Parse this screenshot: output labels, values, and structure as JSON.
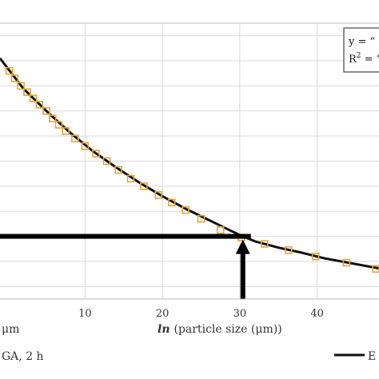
{
  "chart_data": {
    "type": "scatter",
    "xlim": [
      -1,
      48
    ],
    "ylim": [
      -0.5,
      10.5
    ],
    "x_ticks": [
      10,
      20,
      30,
      40
    ],
    "grid": true,
    "xlabel": {
      "left_fragment": "μm",
      "italic_part": "ln",
      "rest": "(particle size (μm))"
    },
    "series": [
      {
        "marker": "square-open",
        "color": "#e8a33a",
        "points": [
          [
            0.2,
            8.6
          ],
          [
            0.9,
            8.3
          ],
          [
            1.7,
            8.0
          ],
          [
            2.5,
            7.75
          ],
          [
            3.3,
            7.5
          ],
          [
            4.1,
            7.25
          ],
          [
            5.0,
            7.0
          ],
          [
            5.8,
            6.7
          ],
          [
            6.6,
            6.45
          ],
          [
            7.5,
            6.2
          ],
          [
            8.7,
            5.9
          ],
          [
            10.0,
            5.6
          ],
          [
            11.4,
            5.3
          ],
          [
            12.8,
            5.0
          ],
          [
            14.3,
            4.65
          ],
          [
            15.9,
            4.3
          ],
          [
            17.6,
            4.0
          ],
          [
            19.5,
            3.65
          ],
          [
            21.2,
            3.35
          ],
          [
            23.0,
            3.05
          ],
          [
            25.0,
            2.7
          ],
          [
            27.5,
            2.25
          ],
          [
            30.2,
            1.95
          ],
          [
            33.2,
            1.7
          ],
          [
            36.3,
            1.45
          ],
          [
            39.8,
            1.2
          ],
          [
            43.8,
            0.95
          ],
          [
            47.6,
            0.7
          ]
        ]
      }
    ],
    "fit_line": {
      "color": "#111111",
      "points": [
        [
          -1.0,
          9.1
        ],
        [
          2.0,
          7.9
        ],
        [
          5.0,
          7.0
        ],
        [
          8.0,
          6.15
        ],
        [
          11.0,
          5.4
        ],
        [
          14.0,
          4.75
        ],
        [
          17.0,
          4.15
        ],
        [
          20.0,
          3.6
        ],
        [
          23.0,
          3.1
        ],
        [
          26.0,
          2.65
        ],
        [
          29.0,
          2.2
        ],
        [
          30.4,
          2.0
        ],
        [
          32.0,
          1.8
        ],
        [
          35.0,
          1.55
        ],
        [
          38.0,
          1.35
        ],
        [
          41.0,
          1.12
        ],
        [
          44.0,
          0.95
        ],
        [
          48.0,
          0.72
        ]
      ]
    },
    "marker_point": [
      30.4,
      2.0
    ],
    "equation_box": {
      "line1": "y = “",
      "line2_prefix": "R",
      "line2_sup": "2",
      "line2_suffix": " = “"
    },
    "legend": {
      "left_text": "GA, 2 h",
      "right_text": "E"
    }
  }
}
